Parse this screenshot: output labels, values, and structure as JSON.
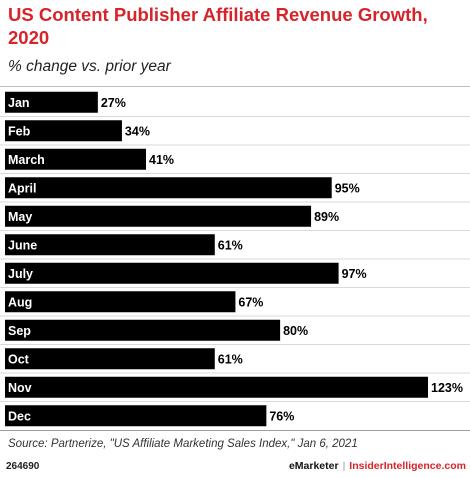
{
  "header": {
    "title": "US Content Publisher Affiliate Revenue Growth, 2020",
    "subtitle": "% change vs. prior year"
  },
  "footer": {
    "source": "Source: Partnerize, \"US Affiliate Marketing Sales Index,\" Jan 6, 2021",
    "chart_id": "264690",
    "brand_emarketer": "eMarketer",
    "brand_separator": "|",
    "brand_insider": "InsiderIntelligence.com"
  },
  "chart_data": {
    "type": "bar",
    "orientation": "horizontal",
    "categories": [
      "Jan",
      "Feb",
      "March",
      "April",
      "May",
      "June",
      "July",
      "Aug",
      "Sep",
      "Oct",
      "Nov",
      "Dec"
    ],
    "values": [
      27,
      34,
      41,
      95,
      89,
      61,
      97,
      67,
      80,
      61,
      123,
      76
    ],
    "labels": [
      "27%",
      "34%",
      "41%",
      "95%",
      "89%",
      "61%",
      "97%",
      "67%",
      "80%",
      "61%",
      "123%",
      "76%"
    ],
    "unit": "%",
    "xlim": [
      0,
      123
    ],
    "colors": {
      "bar": "#000000",
      "category_text": "#ffffff",
      "value_text": "#000000",
      "row_separator": "#d9d9d9",
      "accent": "#d8232a"
    },
    "grid": false,
    "legend": "none"
  }
}
